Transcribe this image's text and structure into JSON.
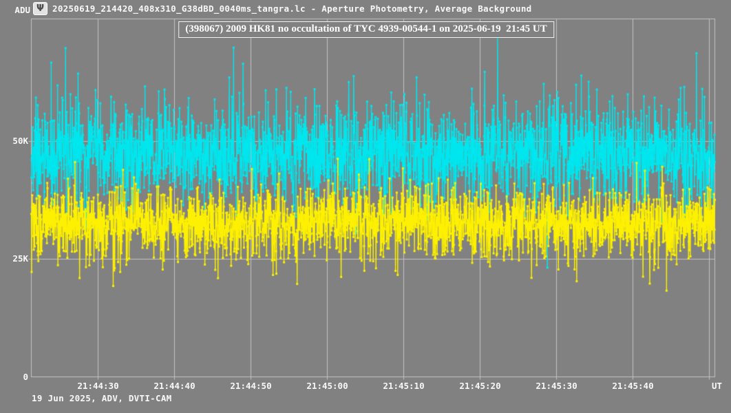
{
  "window": {
    "title": "20250619_214420_408x310_G38dBD_0040ms_tangra.lc - Aperture Photometry, Average Background",
    "icon": "tangra-icon",
    "icon_glyph": "Ψ"
  },
  "title_box": {
    "text": "(398067) 2009 HK81 no occultation of TYC 4939-00544-1 on 2025-06-19  21:45 UT"
  },
  "footer": {
    "text": "19 Jun 2025, ADV, DVTI-CAM"
  },
  "colors": {
    "background": "#818181",
    "grid": "#c3c3c3",
    "plot_border": "#c3c3c3",
    "text": "#f8f8f8",
    "title_text": "#ffffff",
    "series_cyan": "#00e6ee",
    "series_yellow": "#fdf000"
  },
  "chart_data": {
    "type": "scatter",
    "title": "(398067) 2009 HK81 no occultation of TYC 4939-00544-1 on 2025-06-19  21:45 UT",
    "y_axis": {
      "unit_label": "ADU",
      "max": 76000,
      "min": 0,
      "ticks": [
        {
          "label": "50K",
          "value": 50000
        },
        {
          "label": "25K",
          "value": 25000
        },
        {
          "label": "0",
          "value": 0
        }
      ],
      "gridline_values": [
        25000,
        50000
      ]
    },
    "x_axis": {
      "unit_label": "UT",
      "tick_labels": [
        "21:44:30",
        "21:44:40",
        "21:44:50",
        "21:45:00",
        "21:45:10",
        "21:45:20",
        "21:45:30",
        "21:45:40"
      ],
      "span_seconds": 89.5,
      "first_tick_offset_seconds": 8.7,
      "tick_step_seconds": 10,
      "num_gridlines": 9,
      "grid_on": true
    },
    "sampling": {
      "exposure_ms": 40,
      "frames_per_second": 25,
      "num_points_per_series": 2238
    },
    "series": [
      {
        "name": "cyan-light-curve",
        "color": "#00e6ee",
        "mean_adu": 47300,
        "sigma_adu": 5400,
        "spike_prob": 0.012,
        "spike_sigma_adu": 8200,
        "min_adu": 22300,
        "max_adu": 73200,
        "seed": 20250619,
        "feature_points": [
          {
            "frac": 0.05,
            "value": 69800
          },
          {
            "frac": 0.296,
            "value": 69900
          },
          {
            "frac": 0.31,
            "value": 66500
          },
          {
            "frac": 0.682,
            "value": 72800
          },
          {
            "frac": 0.755,
            "value": 23200
          }
        ]
      },
      {
        "name": "yellow-light-curve",
        "color": "#fdf000",
        "mean_adu": 32700,
        "sigma_adu": 3900,
        "spike_prob": 0.012,
        "spike_sigma_adu": 5600,
        "min_adu": 18300,
        "max_adu": 46300,
        "seed": 214420,
        "feature_points": [
          {
            "frac": 0.064,
            "value": 45600
          },
          {
            "frac": 0.12,
            "value": 19300
          },
          {
            "frac": 0.905,
            "value": 19800
          }
        ]
      }
    ]
  }
}
